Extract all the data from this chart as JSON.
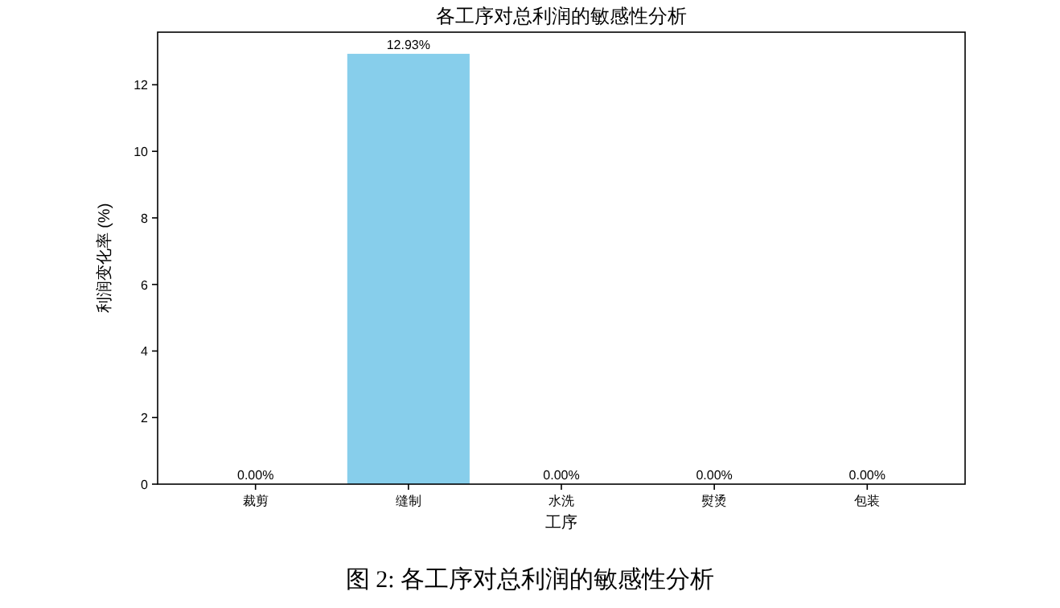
{
  "chart_data": {
    "type": "bar",
    "title": "各工序对总利润的敏感性分析",
    "xlabel": "工序",
    "ylabel": "利润变化率 (%)",
    "categories": [
      "裁剪",
      "缝制",
      "水洗",
      "熨烫",
      "包装"
    ],
    "values": [
      0,
      12.93,
      0,
      0,
      0
    ],
    "value_labels": [
      "0.00%",
      "12.93%",
      "0.00%",
      "0.00%",
      "0.00%"
    ],
    "color": "#87ceeb",
    "ylim": [
      0,
      13.58
    ],
    "yticks": [
      0,
      2,
      4,
      6,
      8,
      10,
      12
    ],
    "annotations": [
      "图 2: 各工序对总利润的敏感性分析"
    ]
  }
}
